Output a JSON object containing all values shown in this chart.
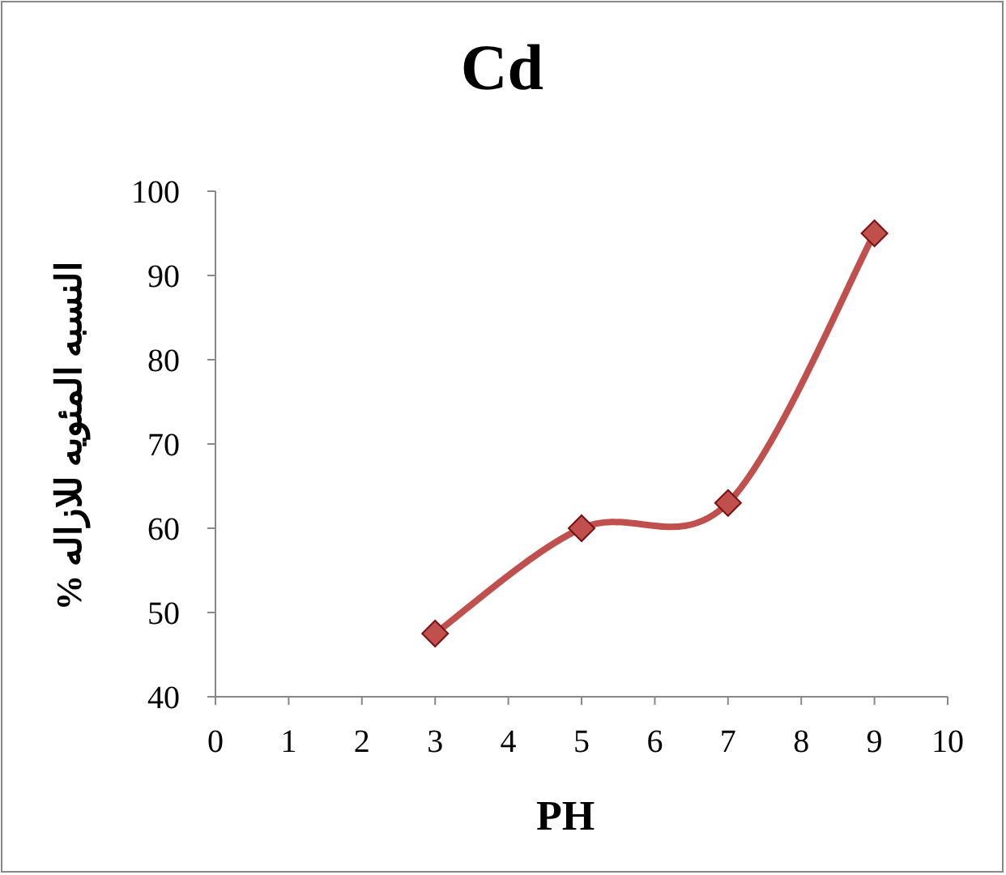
{
  "chart_data": {
    "type": "line",
    "title": "Cd",
    "xlabel": "PH",
    "ylabel": "النسبه المئويه للازاله  %",
    "x": [
      3,
      5,
      7,
      9
    ],
    "series": [
      {
        "color": "#c0504d",
        "values": [
          47.5,
          60,
          63,
          95
        ]
      }
    ],
    "xlim": [
      0,
      10
    ],
    "xticks": [
      0,
      1,
      2,
      3,
      4,
      5,
      6,
      7,
      8,
      9,
      10
    ],
    "ylim": [
      40,
      100
    ],
    "yticks": [
      40,
      50,
      60,
      70,
      80,
      90,
      100
    ],
    "marker": "diamond",
    "line_style": "solid"
  }
}
